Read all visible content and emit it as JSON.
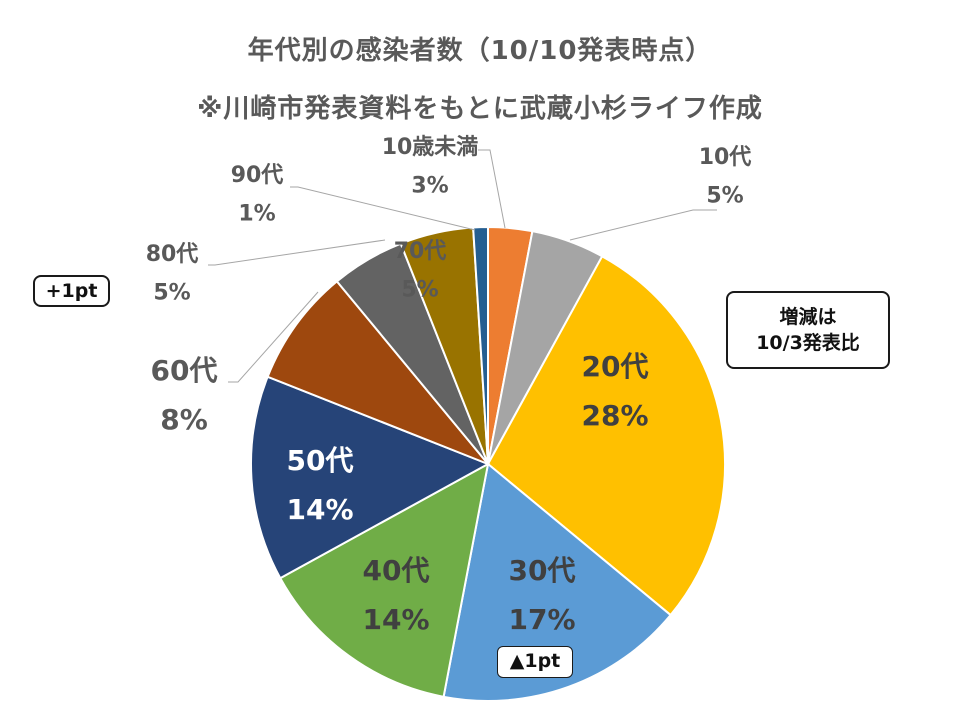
{
  "title": "年代別の感染者数（10/10発表時点）",
  "subtitle": "※川崎市発表資料をもとに武蔵小杉ライフ作成",
  "note": [
    "増減は",
    "10/3発表比"
  ],
  "chart_data": {
    "type": "pie",
    "start_angle_deg": 0,
    "direction": "clockwise",
    "slices": [
      {
        "label": "10歳未満",
        "pct_label": "3%",
        "value": 3,
        "color": "#ED7D31"
      },
      {
        "label": "10代",
        "pct_label": "5%",
        "value": 5,
        "color": "#A5A5A5"
      },
      {
        "label": "20代",
        "pct_label": "28%",
        "value": 28,
        "color": "#FFC000"
      },
      {
        "label": "30代",
        "pct_label": "17%",
        "value": 17,
        "color": "#5B9BD5"
      },
      {
        "label": "40代",
        "pct_label": "14%",
        "value": 14,
        "color": "#70AD47"
      },
      {
        "label": "50代",
        "pct_label": "14%",
        "value": 14,
        "color": "#264478"
      },
      {
        "label": "60代",
        "pct_label": "8%",
        "value": 8,
        "color": "#9E480E"
      },
      {
        "label": "70代",
        "pct_label": "5%",
        "value": 5,
        "color": "#636363"
      },
      {
        "label": "80代",
        "pct_label": "5%",
        "value": 5,
        "color": "#997300"
      },
      {
        "label": "90代",
        "pct_label": "1%",
        "value": 1,
        "color": "#255E91"
      }
    ],
    "callouts": [
      {
        "slice": "30代",
        "text": "▲1pt"
      },
      {
        "slice": "80代",
        "text": "+1pt"
      }
    ]
  }
}
